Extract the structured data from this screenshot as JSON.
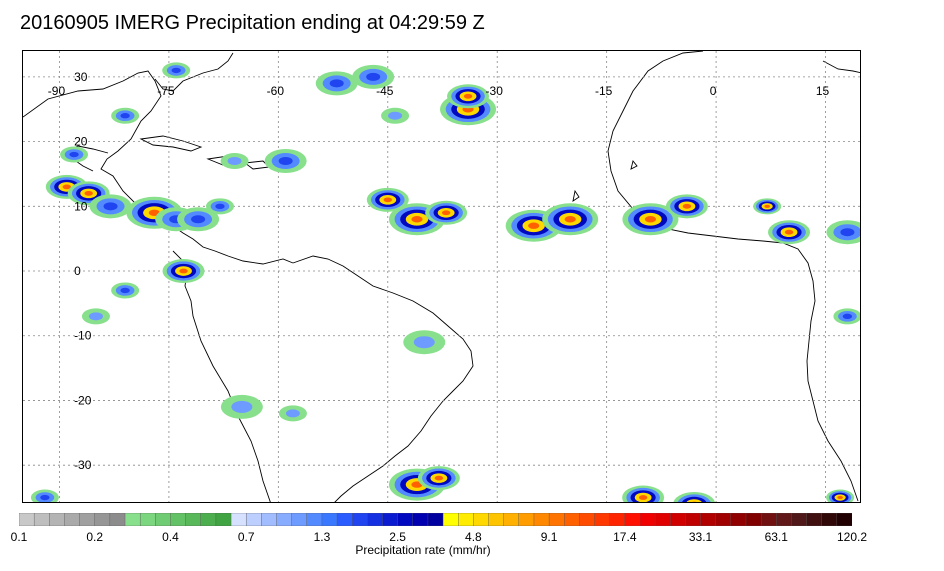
{
  "title": "20160905 IMERG Precipitation ending at 04:29:59 Z",
  "map": {
    "lon_range": [
      -95,
      20
    ],
    "lat_range": [
      -36,
      34
    ],
    "gridlines": "dotted",
    "lon_labels": [
      {
        "value": -90,
        "text": "-90"
      },
      {
        "value": -75,
        "text": "-75"
      },
      {
        "value": -60,
        "text": "-60"
      },
      {
        "value": -45,
        "text": "-45"
      },
      {
        "value": -30,
        "text": "-30"
      },
      {
        "value": -15,
        "text": "-15"
      },
      {
        "value": 0,
        "text": "0"
      },
      {
        "value": 15,
        "text": "15"
      }
    ],
    "lat_labels": [
      {
        "value": 30,
        "text": "30"
      },
      {
        "value": 20,
        "text": "20"
      },
      {
        "value": 10,
        "text": "10"
      },
      {
        "value": 0,
        "text": "0"
      },
      {
        "value": -10,
        "text": "-10"
      },
      {
        "value": -20,
        "text": "-20"
      },
      {
        "value": -30,
        "text": "-30"
      }
    ]
  },
  "colorbar": {
    "title": "Precipitation rate (mm/hr)",
    "tick_labels": [
      "0.1",
      "0.2",
      "0.4",
      "0.7",
      "1.3",
      "2.5",
      "4.8",
      "9.1",
      "17.4",
      "33.1",
      "63.1",
      "120.2"
    ],
    "colors": [
      "#c8c8c8",
      "#bebebe",
      "#b4b4b4",
      "#aaaaaa",
      "#a0a0a0",
      "#969696",
      "#8c8c8c",
      "#88e08c",
      "#7cd67f",
      "#70cc72",
      "#64c266",
      "#58b85a",
      "#4cae4e",
      "#40a442",
      "#d6e0ff",
      "#bccfff",
      "#a2bdff",
      "#88acff",
      "#6e9bff",
      "#548aff",
      "#3a78ff",
      "#2a5cff",
      "#1f44f0",
      "#1530e0",
      "#0b1cd0",
      "#0008c0",
      "#0000b0",
      "#0000a0",
      "#ffff00",
      "#ffec00",
      "#ffd800",
      "#ffc400",
      "#ffb000",
      "#ff9c00",
      "#ff8800",
      "#ff7400",
      "#ff6000",
      "#ff4c00",
      "#ff3800",
      "#ff2400",
      "#ff1000",
      "#f00000",
      "#e00000",
      "#d00000",
      "#c00000",
      "#b00000",
      "#a00000",
      "#900000",
      "#800000",
      "#701010",
      "#601818",
      "#501818",
      "#401010",
      "#300808",
      "#200000"
    ]
  },
  "precip_cells": [
    {
      "lon": -89,
      "lat": 13,
      "size": 3,
      "level": "high"
    },
    {
      "lon": -86,
      "lat": 12,
      "size": 3,
      "level": "high"
    },
    {
      "lon": -83,
      "lat": 10,
      "size": 3,
      "level": "med"
    },
    {
      "lon": -77,
      "lat": 9,
      "size": 4,
      "level": "high"
    },
    {
      "lon": -74,
      "lat": 8,
      "size": 3,
      "level": "med"
    },
    {
      "lon": -71,
      "lat": 8,
      "size": 3,
      "level": "med"
    },
    {
      "lon": -68,
      "lat": 10,
      "size": 2,
      "level": "med"
    },
    {
      "lon": -66,
      "lat": 17,
      "size": 2,
      "level": "low"
    },
    {
      "lon": -59,
      "lat": 17,
      "size": 3,
      "level": "med"
    },
    {
      "lon": -45,
      "lat": 11,
      "size": 3,
      "level": "high"
    },
    {
      "lon": -41,
      "lat": 8,
      "size": 4,
      "level": "high"
    },
    {
      "lon": -37,
      "lat": 9,
      "size": 3,
      "level": "high"
    },
    {
      "lon": -34,
      "lat": 25,
      "size": 4,
      "level": "high"
    },
    {
      "lon": -34,
      "lat": 27,
      "size": 3,
      "level": "high"
    },
    {
      "lon": -25,
      "lat": 7,
      "size": 4,
      "level": "high"
    },
    {
      "lon": -20,
      "lat": 8,
      "size": 4,
      "level": "high"
    },
    {
      "lon": -9,
      "lat": 8,
      "size": 4,
      "level": "high"
    },
    {
      "lon": -4,
      "lat": 10,
      "size": 3,
      "level": "high"
    },
    {
      "lon": 7,
      "lat": 10,
      "size": 2,
      "level": "high"
    },
    {
      "lon": 10,
      "lat": 6,
      "size": 3,
      "level": "high"
    },
    {
      "lon": 18,
      "lat": 6,
      "size": 3,
      "level": "med"
    },
    {
      "lon": -73,
      "lat": 0,
      "size": 3,
      "level": "high"
    },
    {
      "lon": -81,
      "lat": -3,
      "size": 2,
      "level": "med"
    },
    {
      "lon": -88,
      "lat": 18,
      "size": 2,
      "level": "med"
    },
    {
      "lon": -81,
      "lat": 24,
      "size": 2,
      "level": "med"
    },
    {
      "lon": -74,
      "lat": 31,
      "size": 2,
      "level": "med"
    },
    {
      "lon": -52,
      "lat": 29,
      "size": 3,
      "level": "med"
    },
    {
      "lon": -47,
      "lat": 30,
      "size": 3,
      "level": "med"
    },
    {
      "lon": -44,
      "lat": 24,
      "size": 2,
      "level": "low"
    },
    {
      "lon": -41,
      "lat": -33,
      "size": 4,
      "level": "high"
    },
    {
      "lon": -38,
      "lat": -32,
      "size": 3,
      "level": "high"
    },
    {
      "lon": -10,
      "lat": -35,
      "size": 3,
      "level": "high"
    },
    {
      "lon": -3,
      "lat": -36,
      "size": 3,
      "level": "high"
    },
    {
      "lon": 17,
      "lat": -35,
      "size": 2,
      "level": "high"
    },
    {
      "lon": 18,
      "lat": -7,
      "size": 2,
      "level": "med"
    },
    {
      "lon": -92,
      "lat": -35,
      "size": 2,
      "level": "med"
    },
    {
      "lon": -65,
      "lat": -21,
      "size": 3,
      "level": "low"
    },
    {
      "lon": -58,
      "lat": -22,
      "size": 2,
      "level": "low"
    },
    {
      "lon": -40,
      "lat": -11,
      "size": 3,
      "level": "low"
    },
    {
      "lon": -85,
      "lat": -7,
      "size": 2,
      "level": "low"
    }
  ]
}
